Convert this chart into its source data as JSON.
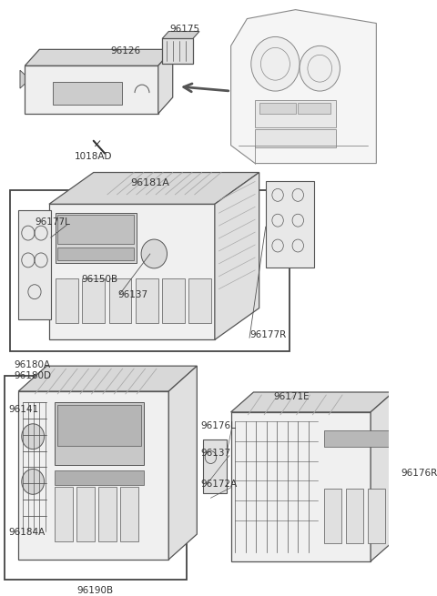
{
  "bg_color": "#ffffff",
  "lc": "#555555",
  "lc_dark": "#333333",
  "tc": "#333333",
  "fig_w": 4.8,
  "fig_h": 6.55,
  "dpi": 100,
  "sections": {
    "top_panel_label": "96126",
    "top_conn_label": "96175",
    "top_screw_label": "1018AD",
    "mid_box_label": "96181A",
    "mid_left_label": "96177L",
    "mid_cassette_label": "96150B",
    "mid_knob_label": "96137",
    "mid_right_label": "96177R",
    "mid_below1": "96180A",
    "mid_below2": "96180D",
    "bl_label1": "96141",
    "bl_label2": "96184A",
    "bl_label3": "96190B",
    "br_label1": "96171E",
    "br_label2": "96176L",
    "br_label3": "96137",
    "br_label4": "96172A",
    "br_label5": "96176R"
  }
}
